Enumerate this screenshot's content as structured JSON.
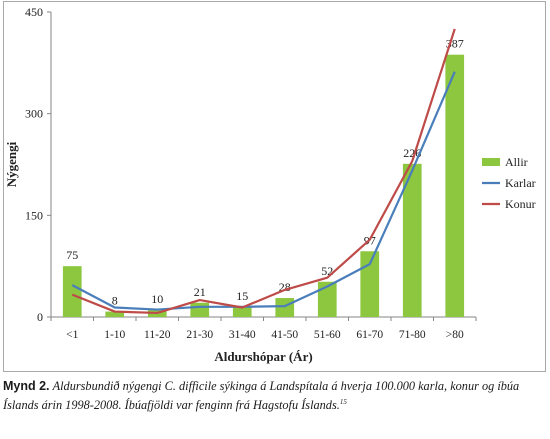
{
  "chart_data": {
    "type": "bar",
    "categories": [
      "<1",
      "1-10",
      "11-20",
      "21-30",
      "31-40",
      "41-50",
      "51-60",
      "61-70",
      "71-80",
      ">80"
    ],
    "ylabel": "Nýgengi",
    "xlabel": "Aldurshópar (Ár)",
    "ylim": [
      0,
      450
    ],
    "yticks": [
      "0",
      "150",
      "300",
      "450"
    ],
    "grid": false,
    "legend_position": "right",
    "series": [
      {
        "name": "Allir",
        "kind": "bar",
        "color": "#8dc63f",
        "values": [
          75,
          8,
          10,
          21,
          15,
          28,
          52,
          97,
          226,
          387
        ],
        "labels": [
          "75",
          "8",
          "10",
          "21",
          "15",
          "28",
          "52",
          "97",
          "226",
          "387"
        ]
      },
      {
        "name": "Karlar",
        "kind": "line",
        "color": "#4a7ebb",
        "values": [
          47,
          14,
          11,
          15,
          15,
          16,
          45,
          78,
          216,
          362
        ]
      },
      {
        "name": "Konur",
        "kind": "line",
        "color": "#be4b48",
        "values": [
          33,
          8,
          6,
          25,
          14,
          40,
          58,
          114,
          230,
          425
        ]
      }
    ]
  },
  "caption": {
    "label": "Mynd 2.",
    "text": "Aldursbundið nýgengi C. difficile sýkinga á Landspítala á hverja 100.000 karla, konur og íbúa Íslands árin 1998-2008. Íbúafjöldi var fenginn frá Hagstofu Íslands.",
    "ref": "15"
  }
}
